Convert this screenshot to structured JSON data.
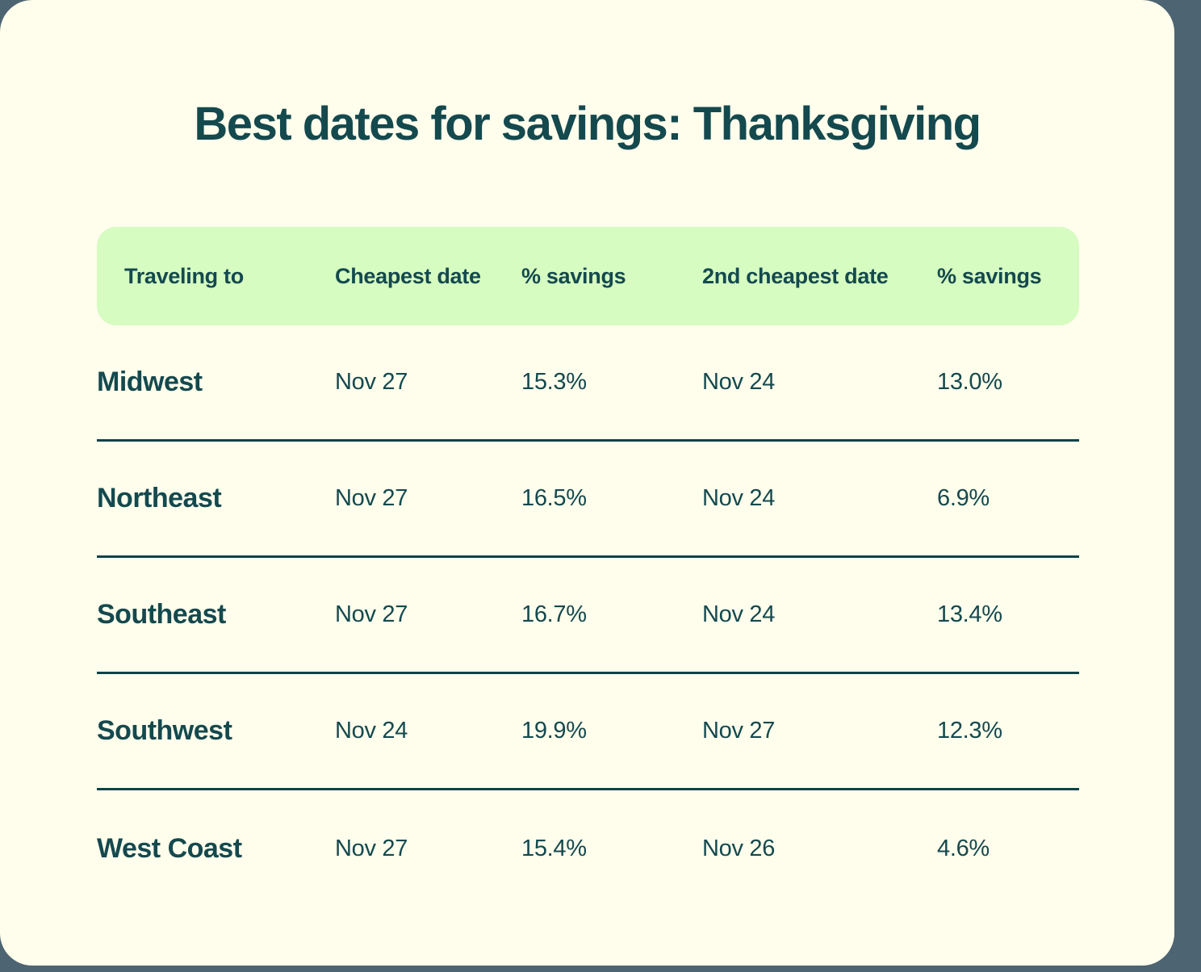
{
  "page": {
    "title": "Best dates for savings: Thanksgiving"
  },
  "colors": {
    "background": "#4d6472",
    "card": "#fffdec",
    "header_band": "#d6fcc1",
    "text": "#14494e",
    "divider": "#0e4347"
  },
  "chart_data": {
    "type": "table",
    "title": "Best dates for savings: Thanksgiving",
    "columns": [
      "Traveling to",
      "Cheapest date",
      "% savings",
      "2nd cheapest date",
      "% savings"
    ],
    "rows": [
      {
        "region": "Midwest",
        "cheapest_date": "Nov 27",
        "cheapest_savings": "15.3%",
        "second_cheapest_date": "Nov 24",
        "second_savings": "13.0%"
      },
      {
        "region": "Northeast",
        "cheapest_date": "Nov 27",
        "cheapest_savings": "16.5%",
        "second_cheapest_date": "Nov 24",
        "second_savings": "6.9%"
      },
      {
        "region": "Southeast",
        "cheapest_date": "Nov 27",
        "cheapest_savings": "16.7%",
        "second_cheapest_date": "Nov 24",
        "second_savings": "13.4%"
      },
      {
        "region": "Southwest",
        "cheapest_date": "Nov 24",
        "cheapest_savings": "19.9%",
        "second_cheapest_date": "Nov 27",
        "second_savings": "12.3%"
      },
      {
        "region": "West Coast",
        "cheapest_date": "Nov 27",
        "cheapest_savings": "15.4%",
        "second_cheapest_date": "Nov 26",
        "second_savings": "4.6%"
      }
    ]
  }
}
